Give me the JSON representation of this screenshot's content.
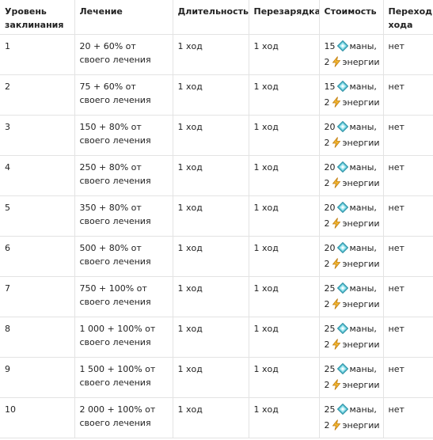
{
  "table": {
    "headers": {
      "level": "Уровень заклинания",
      "heal": "Лечение",
      "duration": "Длительность",
      "cooldown": "Перезарядка",
      "cost": "Стоимость",
      "turn": "Переход хода"
    },
    "mana_icon": "mana-crystal-icon",
    "energy_icon": "lightning-energy-icon",
    "mana_unit": "маны,",
    "energy_unit": "энергии",
    "rows": [
      {
        "level": "1",
        "heal": "20 + 60% от своего лечения",
        "duration": "1 ход",
        "cooldown": "1 ход",
        "mana": "15",
        "energy": "2",
        "turn": "нет"
      },
      {
        "level": "2",
        "heal": "75 + 60% от своего лечения",
        "duration": "1 ход",
        "cooldown": "1 ход",
        "mana": "15",
        "energy": "2",
        "turn": "нет"
      },
      {
        "level": "3",
        "heal": "150 + 80% от своего лечения",
        "duration": "1 ход",
        "cooldown": "1 ход",
        "mana": "20",
        "energy": "2",
        "turn": "нет"
      },
      {
        "level": "4",
        "heal": "250 + 80% от своего лечения",
        "duration": "1 ход",
        "cooldown": "1 ход",
        "mana": "20",
        "energy": "2",
        "turn": "нет"
      },
      {
        "level": "5",
        "heal": "350 + 80% от своего лечения",
        "duration": "1 ход",
        "cooldown": "1 ход",
        "mana": "20",
        "energy": "2",
        "turn": "нет"
      },
      {
        "level": "6",
        "heal": "500 + 80% от своего лечения",
        "duration": "1 ход",
        "cooldown": "1 ход",
        "mana": "20",
        "energy": "2",
        "turn": "нет"
      },
      {
        "level": "7",
        "heal": "750 + 100% от своего лечения",
        "duration": "1 ход",
        "cooldown": "1 ход",
        "mana": "25",
        "energy": "2",
        "turn": "нет"
      },
      {
        "level": "8",
        "heal": "1 000 + 100% от своего лечения",
        "duration": "1 ход",
        "cooldown": "1 ход",
        "mana": "25",
        "energy": "2",
        "turn": "нет"
      },
      {
        "level": "9",
        "heal": "1 500 + 100% от своего лечения",
        "duration": "1 ход",
        "cooldown": "1 ход",
        "mana": "25",
        "energy": "2",
        "turn": "нет"
      },
      {
        "level": "10",
        "heal": "2 000 + 100% от своего лечения",
        "duration": "1 ход",
        "cooldown": "1 ход",
        "mana": "25",
        "energy": "2",
        "turn": "нет"
      }
    ]
  }
}
